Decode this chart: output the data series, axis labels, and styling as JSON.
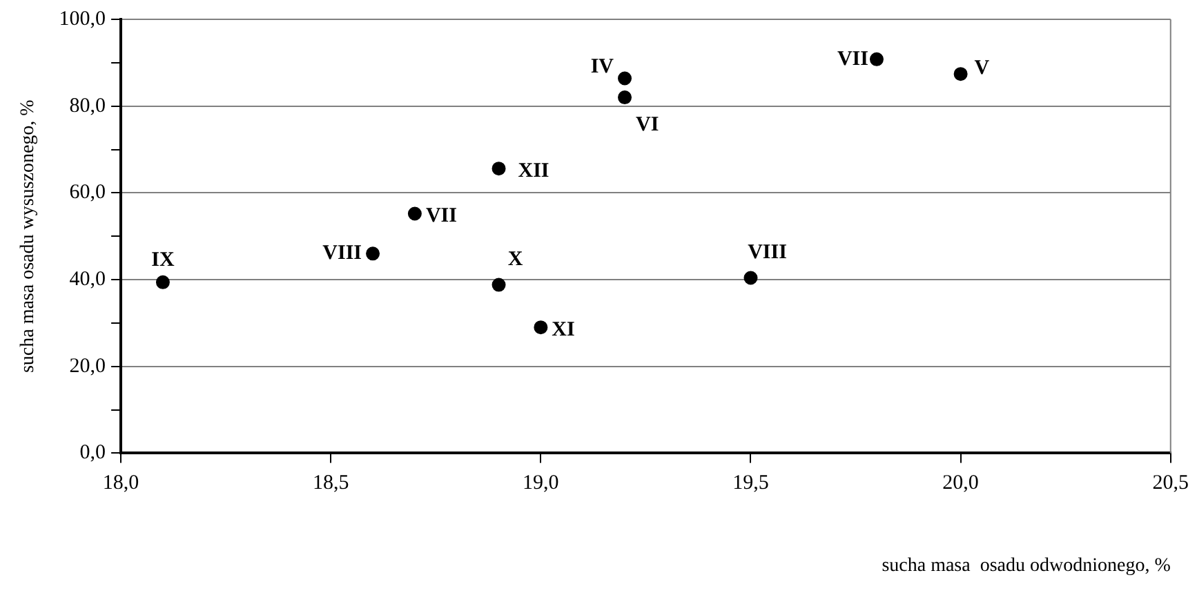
{
  "chart_data": {
    "type": "scatter",
    "xlabel": "sucha masa  osadu odwodnionego, %",
    "ylabel": "sucha masa osadu wysuszonego, %",
    "x": [
      18.1,
      18.6,
      18.7,
      18.9,
      18.9,
      19.0,
      19.2,
      19.2,
      19.5,
      19.8,
      20.0
    ],
    "series": [
      {
        "color": "#000000",
        "values": [
          39.4,
          46.0,
          55.2,
          65.6,
          38.8,
          29.0,
          86.4,
          82.0,
          40.4,
          90.8,
          87.4
        ]
      }
    ],
    "annotations": [
      {
        "text": "IX",
        "x": 18.1,
        "y": 39.4
      },
      {
        "text": "VIII",
        "x": 18.6,
        "y": 46.0
      },
      {
        "text": "VII",
        "x": 18.7,
        "y": 55.2
      },
      {
        "text": "XII",
        "x": 18.9,
        "y": 65.6
      },
      {
        "text": "X",
        "x": 18.9,
        "y": 38.8
      },
      {
        "text": "XI",
        "x": 19.0,
        "y": 29.0
      },
      {
        "text": "IV",
        "x": 19.2,
        "y": 86.4
      },
      {
        "text": "VI",
        "x": 19.2,
        "y": 82.0
      },
      {
        "text": "VIII",
        "x": 19.5,
        "y": 40.4
      },
      {
        "text": "VII",
        "x": 19.8,
        "y": 90.8
      },
      {
        "text": "V",
        "x": 20.0,
        "y": 87.4
      }
    ],
    "xlim": [
      18,
      20.5
    ],
    "xticks": [
      {
        "value": 18,
        "label": "18,0"
      },
      {
        "value": 18.5,
        "label": "18,5"
      },
      {
        "value": 19,
        "label": "19,0"
      },
      {
        "value": 19.5,
        "label": "19,5"
      },
      {
        "value": 20,
        "label": "20,0"
      },
      {
        "value": 20.5,
        "label": "20,5"
      }
    ],
    "ylim": [
      0,
      100
    ],
    "yticks": [
      {
        "value": 0,
        "label": "0,0"
      },
      {
        "value": 10,
        "label": null
      },
      {
        "value": 20,
        "label": "20,0"
      },
      {
        "value": 30,
        "label": null
      },
      {
        "value": 40,
        "label": "40,0"
      },
      {
        "value": 50,
        "label": null
      },
      {
        "value": 60,
        "label": "60,0"
      },
      {
        "value": 70,
        "label": null
      },
      {
        "value": 80,
        "label": "80,0"
      },
      {
        "value": 90,
        "label": null
      },
      {
        "value": 100,
        "label": "100,0"
      }
    ],
    "grid": "y",
    "marker": "circle"
  }
}
